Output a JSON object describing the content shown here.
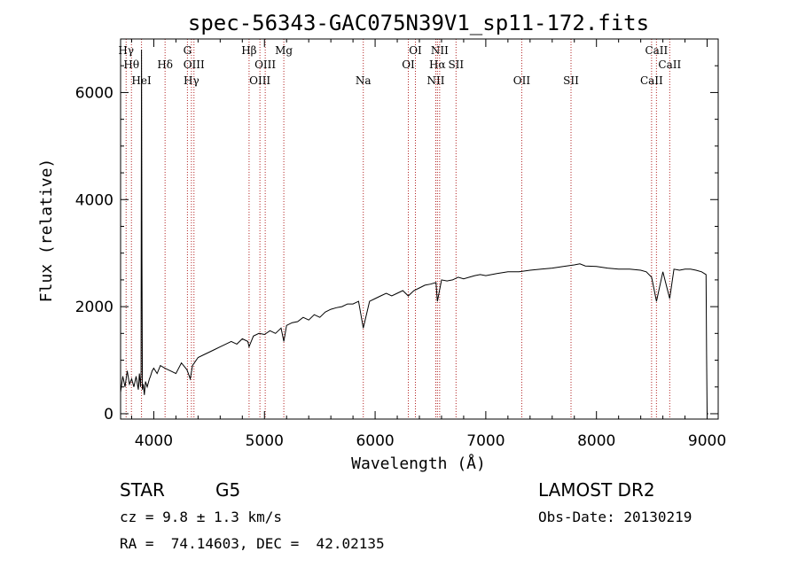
{
  "chart_data": {
    "type": "line",
    "title": "spec-56343-GAC075N39V1_sp11-172.fits",
    "xlabel": "Wavelength (Å)",
    "ylabel": "Flux (relative)",
    "xlim": [
      3700,
      9100
    ],
    "ylim": [
      -100,
      7000
    ],
    "xticks": [
      4000,
      5000,
      6000,
      7000,
      8000,
      9000
    ],
    "yticks": [
      0,
      2000,
      4000,
      6000
    ],
    "grid": false,
    "series": [
      {
        "x": [
          3700,
          3720,
          3740,
          3760,
          3780,
          3800,
          3820,
          3840,
          3860,
          3870,
          3880,
          3885,
          3889,
          3893,
          3897,
          3905,
          3915,
          3925,
          3940,
          3960,
          3970,
          3985,
          4000,
          4030,
          4060,
          4100,
          4150,
          4200,
          4250,
          4300,
          4330,
          4350,
          4400,
          4450,
          4500,
          4550,
          4600,
          4650,
          4700,
          4750,
          4800,
          4850,
          4861,
          4900,
          4950,
          5000,
          5050,
          5100,
          5150,
          5175,
          5200,
          5250,
          5300,
          5350,
          5400,
          5450,
          5500,
          5550,
          5600,
          5650,
          5700,
          5750,
          5800,
          5850,
          5893,
          5950,
          6000,
          6050,
          6100,
          6150,
          6200,
          6250,
          6300,
          6350,
          6400,
          6450,
          6500,
          6550,
          6563,
          6600,
          6650,
          6700,
          6750,
          6800,
          6850,
          6900,
          6950,
          7000,
          7100,
          7200,
          7300,
          7400,
          7500,
          7600,
          7700,
          7800,
          7850,
          7900,
          8000,
          8100,
          8200,
          8300,
          8400,
          8450,
          8498,
          8542,
          8600,
          8662,
          8700,
          8750,
          8800,
          8850,
          8900,
          8950,
          8990,
          8995,
          9000,
          9005,
          9010
        ],
        "y": [
          400,
          700,
          500,
          800,
          550,
          650,
          500,
          700,
          450,
          750,
          500,
          800,
          6800,
          2800,
          450,
          550,
          350,
          600,
          500,
          650,
          700,
          800,
          850,
          750,
          900,
          850,
          800,
          750,
          950,
          820,
          650,
          900,
          1050,
          1100,
          1150,
          1200,
          1250,
          1300,
          1350,
          1300,
          1400,
          1350,
          1250,
          1450,
          1500,
          1480,
          1550,
          1500,
          1600,
          1350,
          1650,
          1700,
          1720,
          1800,
          1750,
          1850,
          1800,
          1900,
          1950,
          1980,
          2000,
          2050,
          2050,
          2100,
          1600,
          2100,
          2150,
          2200,
          2250,
          2200,
          2250,
          2300,
          2200,
          2300,
          2350,
          2400,
          2420,
          2450,
          2100,
          2500,
          2480,
          2500,
          2550,
          2520,
          2550,
          2580,
          2600,
          2580,
          2620,
          2650,
          2650,
          2680,
          2700,
          2720,
          2750,
          2780,
          2800,
          2760,
          2750,
          2720,
          2700,
          2700,
          2680,
          2650,
          2550,
          2100,
          2650,
          2150,
          2700,
          2680,
          2700,
          2700,
          2680,
          2650,
          2600,
          1100,
          0,
          0,
          0
        ]
      }
    ],
    "line_markers": [
      {
        "label": "Hγ",
        "x": 3750,
        "row": 1
      },
      {
        "label": "Hθ",
        "x": 3798,
        "row": 2
      },
      {
        "label": "HeI",
        "x": 3889,
        "row": 3
      },
      {
        "label": "Hδ",
        "x": 4102,
        "row": 2
      },
      {
        "label": "G",
        "x": 4304,
        "row": 1
      },
      {
        "label": "OIII",
        "x": 4363,
        "row": 2
      },
      {
        "label": "Hγ",
        "x": 4340,
        "row": 3
      },
      {
        "label": "Hβ",
        "x": 4861,
        "row": 1
      },
      {
        "label": "OIII",
        "x": 5007,
        "row": 2
      },
      {
        "label": "OIII",
        "x": 4959,
        "row": 3
      },
      {
        "label": "Mg",
        "x": 5175,
        "row": 1
      },
      {
        "label": "Na",
        "x": 5893,
        "row": 3
      },
      {
        "label": "OI",
        "x": 6364,
        "row": 1
      },
      {
        "label": "OI",
        "x": 6300,
        "row": 2
      },
      {
        "label": "NII",
        "x": 6583,
        "row": 1
      },
      {
        "label": "Hα",
        "x": 6563,
        "row": 2
      },
      {
        "label": "NII",
        "x": 6548,
        "row": 3
      },
      {
        "label": "SII",
        "x": 6731,
        "row": 2
      },
      {
        "label": "OII",
        "x": 7325,
        "row": 3
      },
      {
        "label": "SII",
        "x": 7770,
        "row": 3
      },
      {
        "label": "CaII",
        "x": 8542,
        "row": 1
      },
      {
        "label": "CaII",
        "x": 8662,
        "row": 2
      },
      {
        "label": "CaII",
        "x": 8498,
        "row": 3
      }
    ]
  },
  "info": {
    "object_class": "STAR",
    "subclass": "G5",
    "survey": "LAMOST DR2",
    "cz": "cz = 9.8 ± 1.3 km/s",
    "obs_date": "Obs-Date: 20130219",
    "coords": "RA =  74.14603, DEC =  42.02135"
  }
}
